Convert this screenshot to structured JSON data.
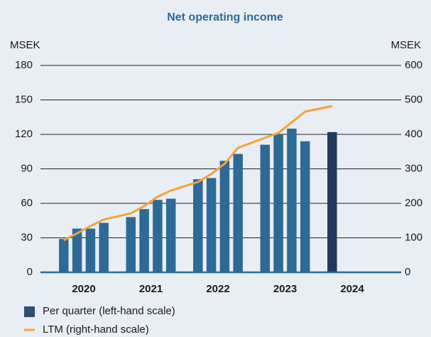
{
  "chart_data": {
    "type": "bar_line",
    "title": "Net operating income",
    "ylabel": "MSEK",
    "y2label": "MSEK",
    "group_labels": [
      "2020",
      "2021",
      "2022",
      "2023",
      "2024"
    ],
    "categories": [
      null,
      null,
      null,
      null,
      null,
      null,
      null,
      null,
      null,
      null,
      null,
      null,
      null,
      null,
      null,
      null,
      null
    ],
    "series": [
      {
        "name": "Per quarter (left-hand scale)",
        "type": "bar",
        "color": "#2d4d73",
        "colors": [
          "#2e6a96",
          "#2e6a96",
          "#2e6a96",
          "#2e6a96",
          "#2e6a96",
          "#2e6a96",
          "#2e6a96",
          "#2e6a96",
          "#2e6a96",
          "#2e6a96",
          "#2e6a96",
          "#2e6a96",
          "#2e6a96",
          "#2e6a96",
          "#2e6a96",
          "#2e6a96",
          "#1f3a5f"
        ],
        "values": [
          29,
          38,
          38,
          43,
          48,
          55,
          63,
          64,
          81,
          82,
          97,
          103,
          111,
          120,
          125,
          114,
          122
        ]
      },
      {
        "name": "LTM (right-hand scale)",
        "type": "line",
        "axis": "y2",
        "color": "#f2a33a",
        "values": [
          93,
          113,
          134,
          153,
          171,
          192,
          219,
          237,
          262,
          285,
          315,
          361,
          390,
          404,
          435,
          466,
          482
        ]
      }
    ],
    "ylim": [
      0,
      180
    ],
    "yticks": [
      0,
      30,
      60,
      90,
      120,
      150,
      180
    ],
    "y2lim": [
      0,
      600
    ],
    "y2ticks": [
      0,
      100,
      200,
      300,
      400,
      500,
      600
    ],
    "grid": true
  }
}
